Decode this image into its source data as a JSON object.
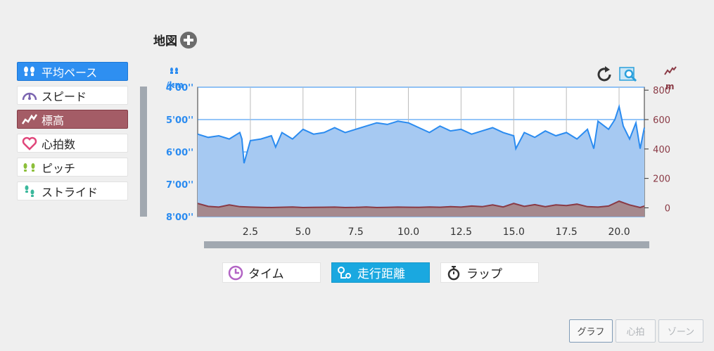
{
  "map": {
    "title": "地図"
  },
  "side_menu": [
    {
      "label": "平均ペース",
      "icon": "footprints-icon",
      "state": "selected-blue"
    },
    {
      "label": "スピード",
      "icon": "speedometer-icon",
      "state": "normal"
    },
    {
      "label": "標高",
      "icon": "elevation-icon",
      "state": "selected-red"
    },
    {
      "label": "心拍数",
      "icon": "heart-icon",
      "state": "normal"
    },
    {
      "label": "ピッチ",
      "icon": "steps-icon",
      "state": "normal"
    },
    {
      "label": "ストライド",
      "icon": "stride-icon",
      "state": "normal"
    }
  ],
  "chart_data": {
    "type": "area",
    "left_axis": {
      "unit": "/km",
      "ticks": [
        "4'00''",
        "5'00''",
        "6'00''",
        "7'00''",
        "8'00''"
      ],
      "tick_values": [
        4,
        5,
        6,
        7,
        8
      ],
      "ylim": [
        8,
        4
      ]
    },
    "right_axis": {
      "unit": "m",
      "ticks": [
        "800",
        "600",
        "400",
        "200",
        "0"
      ],
      "tick_values": [
        800,
        600,
        400,
        200,
        0
      ],
      "ylim": [
        -60,
        820
      ]
    },
    "x_axis": {
      "ticks": [
        "2.5",
        "5.0",
        "7.5",
        "10.0",
        "12.5",
        "15.0",
        "17.5",
        "20.0"
      ],
      "tick_values": [
        2.5,
        5.0,
        7.5,
        10.0,
        12.5,
        15.0,
        17.5,
        20.0
      ],
      "xlim": [
        0,
        21.2
      ]
    },
    "series": [
      {
        "color": "#2a8bf0",
        "fill": "#a6c9f2",
        "x": [
          0,
          0.5,
          1.0,
          1.5,
          2.0,
          2.1,
          2.2,
          2.5,
          3.0,
          3.5,
          3.7,
          4.0,
          4.5,
          5.0,
          5.5,
          6.0,
          6.5,
          7.0,
          7.5,
          8.0,
          8.5,
          9.0,
          9.5,
          10.0,
          10.5,
          11.0,
          11.5,
          12.0,
          12.5,
          13.0,
          13.5,
          14.0,
          14.5,
          15.0,
          15.1,
          15.5,
          16.0,
          16.5,
          17.0,
          17.5,
          18.0,
          18.5,
          18.8,
          19.0,
          19.5,
          19.8,
          20.0,
          20.2,
          20.5,
          20.8,
          21.0,
          21.2
        ],
        "y": [
          5.45,
          5.55,
          5.5,
          5.6,
          5.4,
          5.6,
          6.35,
          5.65,
          5.6,
          5.5,
          5.85,
          5.4,
          5.6,
          5.3,
          5.45,
          5.4,
          5.25,
          5.4,
          5.3,
          5.2,
          5.1,
          5.15,
          5.05,
          5.1,
          5.25,
          5.4,
          5.2,
          5.35,
          5.3,
          5.45,
          5.35,
          5.25,
          5.4,
          5.5,
          5.9,
          5.4,
          5.55,
          5.35,
          5.5,
          5.4,
          5.6,
          5.3,
          5.9,
          5.05,
          5.3,
          5.0,
          4.6,
          5.2,
          5.6,
          5.1,
          5.9,
          5.25
        ]
      },
      {
        "color": "#8a3a45",
        "fill": "#a5898e",
        "x": [
          0,
          0.5,
          1.0,
          1.5,
          2.0,
          2.5,
          3.0,
          3.5,
          4.0,
          4.5,
          5.0,
          5.5,
          6.0,
          6.5,
          7.0,
          7.5,
          8.0,
          8.5,
          9.0,
          9.5,
          10.0,
          10.5,
          11.0,
          11.5,
          12.0,
          12.5,
          13.0,
          13.5,
          14.0,
          14.5,
          15.0,
          15.5,
          16.0,
          16.5,
          17.0,
          17.5,
          18.0,
          18.5,
          19.0,
          19.5,
          20.0,
          20.5,
          21.0,
          21.2
        ],
        "y": [
          30,
          10,
          5,
          20,
          8,
          5,
          3,
          2,
          4,
          6,
          2,
          3,
          4,
          5,
          2,
          3,
          6,
          2,
          3,
          5,
          4,
          3,
          6,
          4,
          8,
          5,
          12,
          8,
          20,
          6,
          30,
          10,
          22,
          8,
          20,
          15,
          25,
          8,
          5,
          12,
          45,
          20,
          2,
          12
        ]
      }
    ]
  },
  "chart_icons": [
    "refresh-icon",
    "zoom-icon",
    "pace-axis-icon",
    "elevation-axis-icon"
  ],
  "bottom_tabs": [
    {
      "label": "タイム",
      "icon": "clock-icon",
      "selected": false
    },
    {
      "label": "走行距離",
      "icon": "route-icon",
      "selected": true
    },
    {
      "label": "ラップ",
      "icon": "stopwatch-icon",
      "selected": false
    }
  ],
  "bottom_buttons": [
    {
      "label": "グラフ",
      "active": true
    },
    {
      "label": "心拍",
      "active": false
    },
    {
      "label": "ゾーン",
      "active": false
    }
  ],
  "colors": {
    "pace_blue": "#2a8bf0",
    "elevation_red": "#8a3a45",
    "side_selected_blue": "#2e8ff1",
    "side_selected_red": "#a45c66",
    "tab_selected": "#1aa8e0"
  }
}
